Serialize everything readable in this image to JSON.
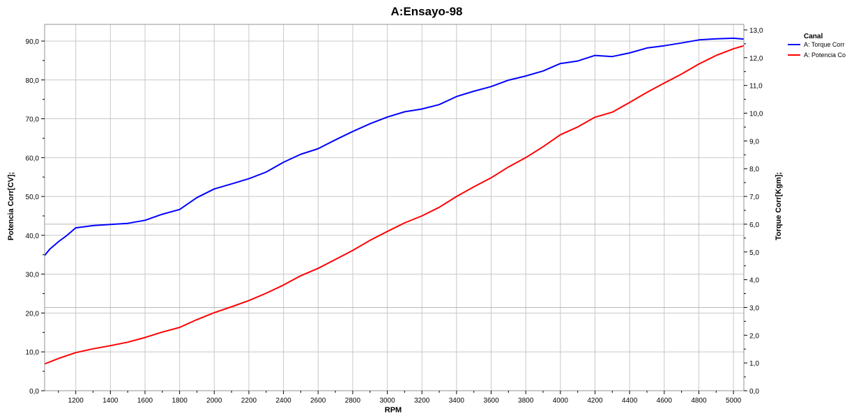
{
  "chart_data": {
    "type": "line",
    "title": "A:Ensayo-98",
    "xlabel": "RPM",
    "ylabel_left": "Potencia Corr[CV];",
    "ylabel_right": "Torque Corr[Kgm];",
    "xlim": [
      1020,
      5060
    ],
    "ylim_left": [
      0,
      94.3
    ],
    "ylim_right": [
      0,
      13.2
    ],
    "x_ticks": [
      1200,
      1400,
      1600,
      1800,
      2000,
      2200,
      2400,
      2600,
      2800,
      3000,
      3200,
      3400,
      3600,
      3800,
      4000,
      4200,
      4400,
      4600,
      4800,
      5000
    ],
    "x_tick_labels": [
      "1200",
      "1400",
      "1600",
      "1800",
      "2000",
      "2200",
      "2400",
      "2600",
      "2800",
      "3000",
      "3200",
      "3400",
      "3600",
      "3800",
      "4000",
      "4200",
      "4400",
      "4600",
      "4800",
      "5000"
    ],
    "y_left_ticks": [
      0,
      10,
      20,
      30,
      40,
      50,
      60,
      70,
      80,
      90
    ],
    "y_left_tick_labels": [
      "0,0",
      "10,0",
      "20,0",
      "30,0",
      "40,0",
      "50,0",
      "60,0",
      "70,0",
      "80,0",
      "90,0"
    ],
    "y_right_ticks": [
      0,
      1,
      2,
      3,
      4,
      5,
      6,
      7,
      8,
      9,
      10,
      11,
      12,
      13
    ],
    "y_right_tick_labels": [
      "0,0",
      "1,0",
      "2,0",
      "3,0",
      "4,0",
      "5,0",
      "6,0",
      "7,0",
      "8,0",
      "9,0",
      "10,0",
      "11,0",
      "12,0",
      "13,0"
    ],
    "grid": true,
    "legend": {
      "title": "Canal",
      "position": "top-right",
      "entries": [
        {
          "label": "A: Torque Corr",
          "color": "#0000ff"
        },
        {
          "label": "A: Potencia Co",
          "color": "#ff0000"
        }
      ]
    },
    "series": [
      {
        "name": "A: Torque Corr",
        "axis": "right",
        "color": "#0000ff",
        "x": [
          1020,
          1050,
          1100,
          1150,
          1200,
          1300,
          1400,
          1500,
          1600,
          1700,
          1800,
          1900,
          2000,
          2100,
          2200,
          2300,
          2400,
          2500,
          2600,
          2700,
          2800,
          2900,
          3000,
          3100,
          3200,
          3300,
          3400,
          3500,
          3600,
          3700,
          3800,
          3900,
          4000,
          4100,
          4200,
          4300,
          4400,
          4500,
          4600,
          4700,
          4800,
          4900,
          5000,
          5060
        ],
        "y": [
          4.87,
          5.1,
          5.37,
          5.6,
          5.87,
          5.95,
          5.99,
          6.03,
          6.14,
          6.36,
          6.53,
          6.96,
          7.27,
          7.45,
          7.64,
          7.88,
          8.23,
          8.52,
          8.72,
          9.04,
          9.34,
          9.62,
          9.86,
          10.05,
          10.15,
          10.31,
          10.6,
          10.79,
          10.96,
          11.19,
          11.34,
          11.52,
          11.79,
          11.88,
          12.08,
          12.04,
          12.17,
          12.35,
          12.43,
          12.53,
          12.64,
          12.68,
          12.7,
          12.67
        ]
      },
      {
        "name": "A: Potencia Co",
        "axis": "left",
        "color": "#ff0000",
        "x": [
          1020,
          1050,
          1100,
          1200,
          1300,
          1400,
          1500,
          1600,
          1700,
          1800,
          1900,
          2000,
          2100,
          2200,
          2300,
          2400,
          2500,
          2600,
          2700,
          2800,
          2900,
          3000,
          3100,
          3200,
          3300,
          3400,
          3500,
          3600,
          3700,
          3800,
          3900,
          4000,
          4100,
          4200,
          4300,
          4400,
          4500,
          4600,
          4700,
          4800,
          4900,
          5000,
          5060
        ],
        "y": [
          6.9,
          7.4,
          8.3,
          9.8,
          10.8,
          11.6,
          12.5,
          13.7,
          15.1,
          16.3,
          18.3,
          20.1,
          21.6,
          23.2,
          25.1,
          27.2,
          29.6,
          31.5,
          33.8,
          36.1,
          38.7,
          41.0,
          43.2,
          45.0,
          47.2,
          50.0,
          52.5,
          54.8,
          57.6,
          60.0,
          62.8,
          65.9,
          67.9,
          70.4,
          71.7,
          74.2,
          76.8,
          79.2,
          81.5,
          84.1,
          86.3,
          88.0,
          88.8
        ]
      }
    ]
  }
}
